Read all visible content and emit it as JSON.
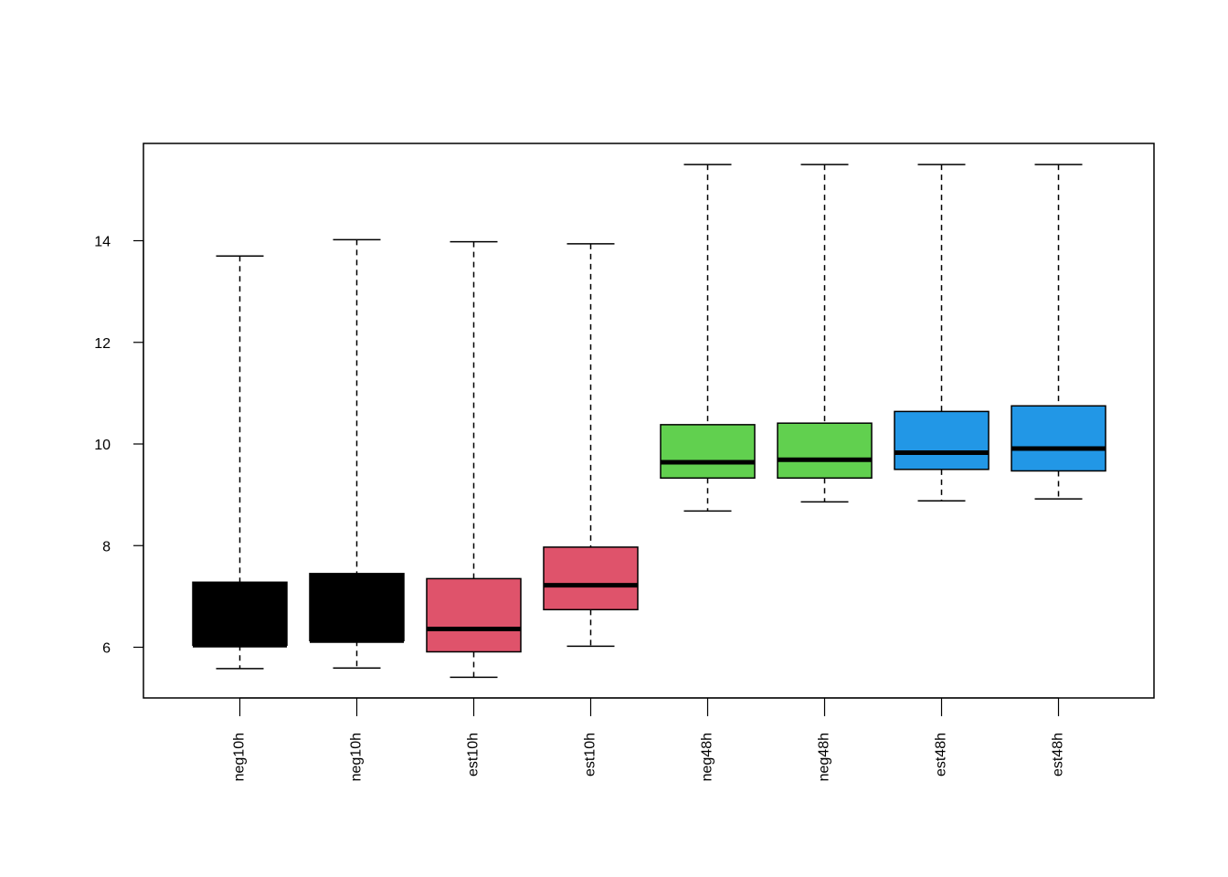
{
  "chart_data": {
    "type": "boxplot",
    "title": "",
    "xlabel": "",
    "ylabel": "",
    "ylim": [
      5.0,
      15.9
    ],
    "yticks": [
      6,
      8,
      10,
      12,
      14
    ],
    "grid": false,
    "legend": "none",
    "categories": [
      "neg10h",
      "neg10h",
      "est10h",
      "est10h",
      "neg48h",
      "neg48h",
      "est48h",
      "est48h"
    ],
    "boxes": [
      {
        "label": "neg10h",
        "whisker_low": 5.58,
        "q1": 6.04,
        "median": 6.04,
        "q3": 7.28,
        "whisker_high": 13.7,
        "color": "#000000"
      },
      {
        "label": "neg10h",
        "whisker_low": 5.59,
        "q1": 6.13,
        "median": 6.13,
        "q3": 7.45,
        "whisker_high": 14.02,
        "color": "#000000"
      },
      {
        "label": "est10h",
        "whisker_low": 5.41,
        "q1": 5.91,
        "median": 6.36,
        "q3": 7.35,
        "whisker_high": 13.98,
        "color": "#DF536B"
      },
      {
        "label": "est10h",
        "whisker_low": 6.02,
        "q1": 6.74,
        "median": 7.22,
        "q3": 7.97,
        "whisker_high": 13.94,
        "color": "#DF536B"
      },
      {
        "label": "neg48h",
        "whisker_low": 8.68,
        "q1": 9.33,
        "median": 9.64,
        "q3": 10.38,
        "whisker_high": 15.5,
        "color": "#61D04F"
      },
      {
        "label": "neg48h",
        "whisker_low": 8.86,
        "q1": 9.33,
        "median": 9.69,
        "q3": 10.41,
        "whisker_high": 15.5,
        "color": "#61D04F"
      },
      {
        "label": "est48h",
        "whisker_low": 8.88,
        "q1": 9.5,
        "median": 9.83,
        "q3": 10.64,
        "whisker_high": 15.5,
        "color": "#2297E6"
      },
      {
        "label": "est48h",
        "whisker_low": 8.92,
        "q1": 9.47,
        "median": 9.91,
        "q3": 10.75,
        "whisker_high": 15.5,
        "color": "#2297E6"
      }
    ]
  }
}
